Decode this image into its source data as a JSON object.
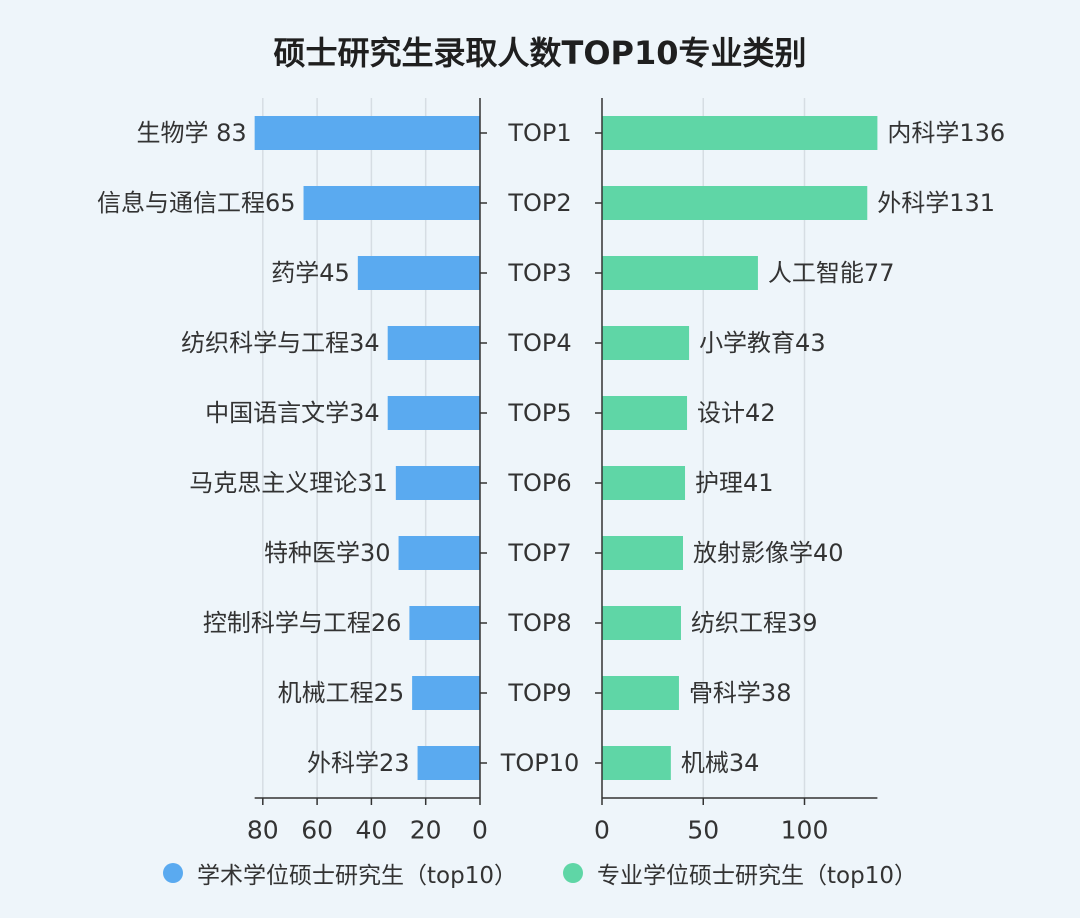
{
  "chart_data": [
    {
      "type": "bar",
      "orientation": "horizontal",
      "direction": "reversed",
      "categories": [
        "生物学 83",
        "信息与通信工程65",
        "药学45",
        "纺织科学与工程34",
        "中国语言文学34",
        "马克思主义理论31",
        "特种医学30",
        "控制科学与工程26",
        "机械工程25",
        "外科学23"
      ],
      "values": [
        83,
        65,
        45,
        34,
        34,
        31,
        30,
        26,
        25,
        23
      ],
      "series": [
        {
          "name": "学术学位硕士研究生（top10）",
          "values": [
            83,
            65,
            45,
            34,
            34,
            31,
            30,
            26,
            25,
            23
          ]
        }
      ],
      "xlim": [
        0,
        83
      ],
      "xticks": [
        80,
        60,
        40,
        20,
        0
      ],
      "grid": true,
      "color": "#5aaaf0"
    },
    {
      "type": "bar",
      "orientation": "horizontal",
      "categories": [
        "内科学136",
        "外科学131",
        "人工智能77",
        "小学教育43",
        "设计42",
        "护理41",
        "放射影像学40",
        "纺织工程39",
        "骨科学38",
        "机械34"
      ],
      "values": [
        136,
        131,
        77,
        43,
        42,
        41,
        40,
        39,
        38,
        34
      ],
      "series": [
        {
          "name": "专业学位硕士研究生（top10）",
          "values": [
            136,
            131,
            77,
            43,
            42,
            41,
            40,
            39,
            38,
            34
          ]
        }
      ],
      "xlim": [
        0,
        136
      ],
      "xticks": [
        0,
        50,
        100
      ],
      "grid": true,
      "color": "#5fd6a6"
    }
  ],
  "title": "硕士研究生录取人数TOP10专业类别",
  "ranks": [
    "TOP1",
    "TOP2",
    "TOP3",
    "TOP4",
    "TOP5",
    "TOP6",
    "TOP7",
    "TOP8",
    "TOP9",
    "TOP10"
  ],
  "legend": [
    {
      "label": "学术学位硕士研究生（top10）",
      "color": "#5aaaf0"
    },
    {
      "label": "专业学位硕士研究生（top10）",
      "color": "#5fd6a6"
    }
  ]
}
